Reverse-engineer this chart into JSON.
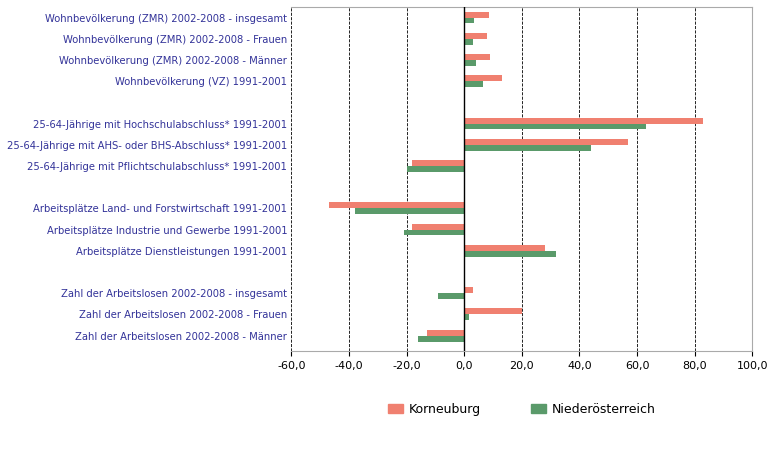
{
  "categories": [
    "Wohnbevölkerung (ZMR) 2002-2008 - insgesamt",
    "Wohnbevölkerung (ZMR) 2002-2008 - Frauen",
    "Wohnbevölkerung (ZMR) 2002-2008 - Männer",
    "Wohnbevölkerung (VZ) 1991-2001",
    "",
    "25-64-Jährige mit Hochschulabschluss* 1991-2001",
    "25-64-Jährige mit AHS- oder BHS-Abschluss* 1991-2001",
    "25-64-Jährige mit Pflichtschulabschluss* 1991-2001",
    "",
    "Arbeitsplätze Land- und Forstwirtschaft 1991-2001",
    "Arbeitsplätze Industrie und Gewerbe 1991-2001",
    "Arbeitsplätze Dienstleistungen 1991-2001",
    "",
    "Zahl der Arbeitslosen 2002-2008 - insgesamt",
    "Zahl der Arbeitslosen 2002-2008 - Frauen",
    "Zahl der Arbeitslosen 2002-2008 - Männer"
  ],
  "korneuburg": [
    8.5,
    8.0,
    9.0,
    13.0,
    null,
    83.0,
    57.0,
    -18.0,
    null,
    -47.0,
    -18.0,
    28.0,
    null,
    3.0,
    20.0,
    -13.0
  ],
  "niederoesterreich": [
    3.5,
    3.0,
    4.0,
    6.5,
    null,
    63.0,
    44.0,
    -20.0,
    null,
    -38.0,
    -21.0,
    32.0,
    null,
    -9.0,
    1.5,
    -16.0
  ],
  "color_korneuburg": "#f08070",
  "color_niederoesterreich": "#5a9a6a",
  "xlim": [
    -60,
    100
  ],
  "xticks": [
    -60,
    -40,
    -20,
    0,
    20,
    40,
    60,
    80,
    100
  ],
  "xtick_labels": [
    "-60,0",
    "-40,0",
    "-20,0",
    "0,0",
    "20,0",
    "40,0",
    "60,0",
    "80,0",
    "100,0"
  ],
  "label_korneuburg": "Korneuburg",
  "label_niederoesterreich": "Niederösterreich",
  "label_color": "#333399",
  "bar_height": 0.28,
  "background_color": "#ffffff"
}
